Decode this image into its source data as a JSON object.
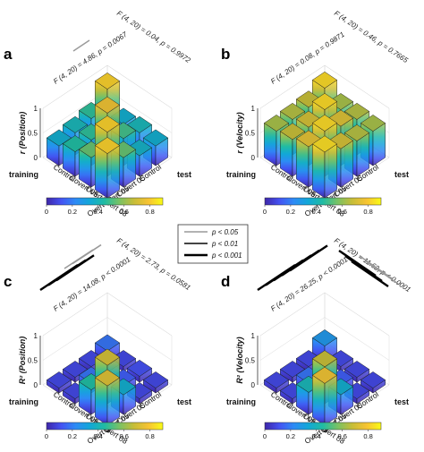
{
  "legend": {
    "items": [
      {
        "label": "p < 0.05",
        "color": "#9a9a9a",
        "width": 1.5
      },
      {
        "label": "p < 0.01",
        "color": "#444444",
        "width": 2
      },
      {
        "label": "p < 0.001",
        "color": "#000000",
        "width": 2.5
      }
    ]
  },
  "colormap": [
    "#3e26a8",
    "#4452f2",
    "#2d8bf5",
    "#11a8d7",
    "#21bca2",
    "#77c265",
    "#c6bd38",
    "#f7c333",
    "#f9fb15"
  ],
  "chart_data": [
    {
      "panel": "a",
      "type": "bar3d",
      "zlabel": "r (Position)",
      "xlabel": "training",
      "ylabel": "test",
      "categories": [
        "Control",
        "Covert 05",
        "Overt 05",
        "Overt 08"
      ],
      "zlim": [
        0,
        1
      ],
      "zticks": [
        "0",
        "0.5",
        "1"
      ],
      "stats": [
        "F (4, 20) = 4.86, p = 0.0067",
        "F (4, 20) = 0.04, p = 0.9972"
      ],
      "values": [
        [
          0.9,
          0.4,
          0.45,
          0.4
        ],
        [
          0.52,
          0.85,
          0.55,
          0.42
        ],
        [
          0.45,
          0.52,
          0.9,
          0.6
        ],
        [
          0.4,
          0.5,
          0.6,
          0.9
        ]
      ],
      "colorbar": {
        "ticks": [
          "0",
          "0.2",
          "0.4",
          "0.6",
          "0.8"
        ]
      }
    },
    {
      "panel": "b",
      "type": "bar3d",
      "zlabel": "r (Velocity)",
      "xlabel": "training",
      "ylabel": "test",
      "categories": [
        "Control",
        "Covert 05",
        "Overt 05",
        "Overt 08"
      ],
      "zlim": [
        0,
        1
      ],
      "zticks": [
        "0",
        "0.5",
        "1"
      ],
      "stats": [
        "F (4, 20) = 0.08, p = 0.9871",
        "F (4, 20) = 0.46, p = 0.7665"
      ],
      "values": [
        [
          0.92,
          0.7,
          0.72,
          0.7
        ],
        [
          0.75,
          0.92,
          0.8,
          0.72
        ],
        [
          0.72,
          0.78,
          0.92,
          0.78
        ],
        [
          0.7,
          0.75,
          0.82,
          0.93
        ]
      ],
      "colorbar": {
        "ticks": [
          "0",
          "0.2",
          "0.4",
          "0.6",
          "0.8"
        ]
      }
    },
    {
      "panel": "c",
      "type": "bar3d",
      "zlabel": "R² (Position)",
      "xlabel": "training",
      "ylabel": "test",
      "categories": [
        "Control",
        "Covert 05",
        "Overt 05",
        "Overt 08"
      ],
      "zlim": [
        0,
        1
      ],
      "zticks": [
        "0",
        "0.5",
        "1"
      ],
      "stats": [
        "F (4, 20) = 14.08, p < 0.0001",
        "F (4, 20) = 2.73, p = 0.0581"
      ],
      "values": [
        [
          0.2,
          0.1,
          0.12,
          0.1
        ],
        [
          0.1,
          0.2,
          0.15,
          0.1
        ],
        [
          0.1,
          0.2,
          0.78,
          0.4
        ],
        [
          0.1,
          0.1,
          0.5,
          0.8
        ]
      ],
      "colorbar": {
        "ticks": [
          "0",
          "0.2",
          "0.4",
          "0.6",
          "0.8"
        ]
      }
    },
    {
      "panel": "d",
      "type": "bar3d",
      "zlabel": "R² (Velocity)",
      "xlabel": "training",
      "ylabel": "test",
      "categories": [
        "Control",
        "Covert 05",
        "Overt 05",
        "Overt 08"
      ],
      "zlim": [
        0,
        1
      ],
      "zticks": [
        "0",
        "0.5",
        "1"
      ],
      "stats": [
        "F (4, 20) = 26.25, p < 0.0001",
        "F (4, 20) = 11.62, p < 0.0001"
      ],
      "values": [
        [
          0.3,
          0.1,
          0.1,
          0.1
        ],
        [
          0.1,
          0.3,
          0.15,
          0.1
        ],
        [
          0.1,
          0.2,
          0.75,
          0.4
        ],
        [
          0.1,
          0.1,
          0.45,
          0.85
        ]
      ],
      "colorbar": {
        "ticks": [
          "0",
          "0.2",
          "0.4",
          "0.6",
          "0.8"
        ]
      }
    }
  ]
}
